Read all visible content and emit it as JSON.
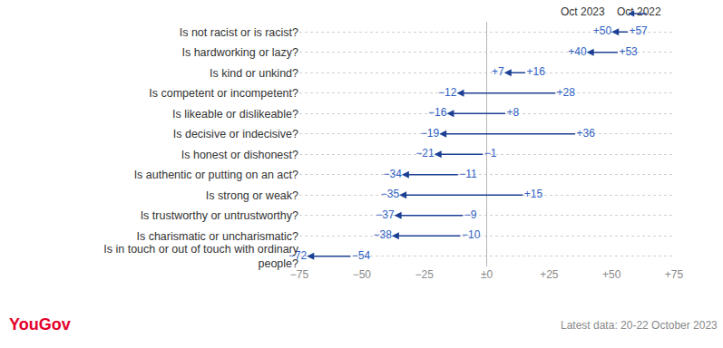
{
  "chart_data": {
    "type": "arrow",
    "orientation": "horizontal",
    "categories": [
      "Is not racist or is racist?",
      "Is hardworking or lazy?",
      "Is kind or unkind?",
      "Is competent or incompetent?",
      "Is likeable or dislikeable?",
      "Is decisive or indecisive?",
      "Is honest or dishonest?",
      "Is authentic or putting on an act?",
      "Is strong or weak?",
      "Is trustworthy or untrustworthy?",
      "Is charismatic or uncharismatic?",
      "Is in touch or out of touch with ordinary people?"
    ],
    "series": [
      {
        "name": "Oct 2022",
        "color": "#1c3f94",
        "values": [
          57,
          53,
          16,
          28,
          8,
          36,
          -1,
          -11,
          15,
          -9,
          -10,
          -54
        ],
        "value_labels": [
          "+57",
          "+53",
          "+16",
          "+28",
          "+8",
          "+36",
          "−1",
          "−11",
          "+15",
          "−9",
          "−10",
          "−54"
        ]
      },
      {
        "name": "Oct 2023",
        "color": "#1c3f94",
        "values": [
          50,
          40,
          7,
          -12,
          -16,
          -19,
          -21,
          -34,
          -35,
          -37,
          -38,
          -72
        ],
        "value_labels": [
          "+50",
          "+40",
          "+7",
          "−12",
          "−16",
          "−19",
          "−21",
          "−34",
          "−35",
          "−37",
          "−38",
          "−72"
        ]
      }
    ],
    "xlim": [
      -75,
      75
    ],
    "xticks": [
      {
        "value": -75,
        "label": "−75"
      },
      {
        "value": -50,
        "label": "−50"
      },
      {
        "value": -25,
        "label": "−25"
      },
      {
        "value": 0,
        "label": "±0"
      },
      {
        "value": 25,
        "label": "+25"
      },
      {
        "value": 50,
        "label": "+50"
      },
      {
        "value": 75,
        "label": "+75"
      }
    ],
    "grid": true,
    "data_labels": true,
    "legend": "top right",
    "source": "YouGov",
    "note": "Latest data: 20-22 October 2023"
  }
}
